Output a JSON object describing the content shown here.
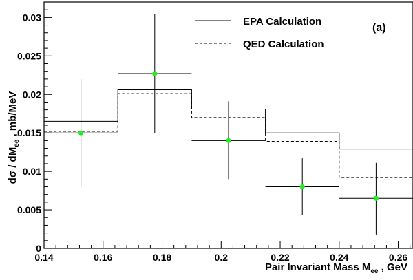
{
  "chart_data": {
    "type": "histogram-with-errorbars",
    "panel_tag": "(a)",
    "ylabel_parts": {
      "pre": "dσ / dM",
      "sub": "ee",
      "post": " , mb/MeV"
    },
    "xlabel_parts": {
      "pre": "Pair Invariant Mass M",
      "sub": "ee",
      "post": " , GeV"
    },
    "xlim": [
      0.14,
      0.265
    ],
    "ylim": [
      0,
      0.032
    ],
    "x_ticks": [
      "0.14",
      "0.16",
      "0.18",
      "0.2",
      "0.22",
      "0.24",
      "0.26"
    ],
    "y_ticks": [
      "0",
      "0.005",
      "0.01",
      "0.015",
      "0.02",
      "0.025",
      "0.03"
    ],
    "bin_edges": [
      0.14,
      0.165,
      0.19,
      0.215,
      0.24,
      0.265
    ],
    "series": [
      {
        "name": "EPA Calculation",
        "style": "solid",
        "values": [
          0.0165,
          0.0206,
          0.0181,
          0.015,
          0.0129
        ]
      },
      {
        "name": "QED Calculation",
        "style": "dashed",
        "values": [
          0.0152,
          0.0201,
          0.017,
          0.0139,
          0.0092
        ]
      }
    ],
    "data_points": {
      "marker_color": "#22ee22",
      "points": [
        {
          "x": 0.1525,
          "y": 0.015,
          "yerr_low": 0.008,
          "yerr_high": 0.022,
          "xerr": 0.0125
        },
        {
          "x": 0.1775,
          "y": 0.0227,
          "yerr_low": 0.015,
          "yerr_high": 0.0304,
          "xerr": 0.0125
        },
        {
          "x": 0.2025,
          "y": 0.014,
          "yerr_low": 0.009,
          "yerr_high": 0.0191,
          "xerr": 0.0125
        },
        {
          "x": 0.2275,
          "y": 0.008,
          "yerr_low": 0.0043,
          "yerr_high": 0.0117,
          "xerr": 0.0125
        },
        {
          "x": 0.2525,
          "y": 0.0065,
          "yerr_low": 0.0018,
          "yerr_high": 0.0111,
          "xerr": 0.0125
        }
      ]
    },
    "legend": [
      {
        "label": "EPA Calculation",
        "style": "solid"
      },
      {
        "label": "QED Calculation",
        "style": "dashed"
      }
    ],
    "grid": false,
    "legend_position": "top-right"
  }
}
